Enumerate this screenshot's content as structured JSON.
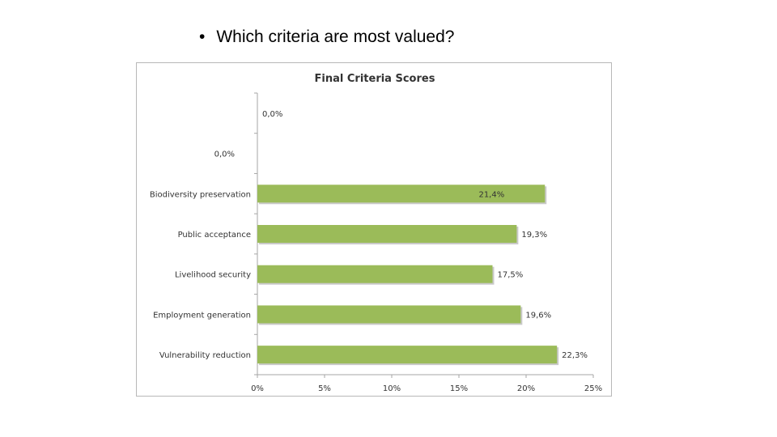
{
  "slide": {
    "bullet": "•",
    "question": "Which criteria are most valued?"
  },
  "colors": {
    "bar": "#9bbb59",
    "bar_shadow": "#c9c9c9",
    "axis": "#a6a6a6"
  },
  "chart_data": {
    "type": "bar",
    "orientation": "horizontal",
    "title": "Final Criteria Scores",
    "categories": [
      "",
      "",
      "Biodiversity preservation",
      "Public acceptance",
      "Livelihood security",
      "Employment generation",
      "Vulnerability reduction"
    ],
    "values": [
      0.0,
      0.0,
      21.4,
      19.3,
      17.5,
      19.6,
      22.3
    ],
    "value_labels": [
      "0,0%",
      "0,0%",
      "21,4%",
      "19,3%",
      "17,5%",
      "19,6%",
      "22,3%"
    ],
    "label_position": [
      "outside",
      "inside-left",
      "inside",
      "outside",
      "outside",
      "outside",
      "outside"
    ],
    "xlim": [
      0,
      25
    ],
    "xticks": [
      0,
      5,
      10,
      15,
      20,
      25
    ],
    "xtick_labels": [
      "0%",
      "5%",
      "10%",
      "15%",
      "20%",
      "25%"
    ],
    "grid": false,
    "legend": "none"
  }
}
